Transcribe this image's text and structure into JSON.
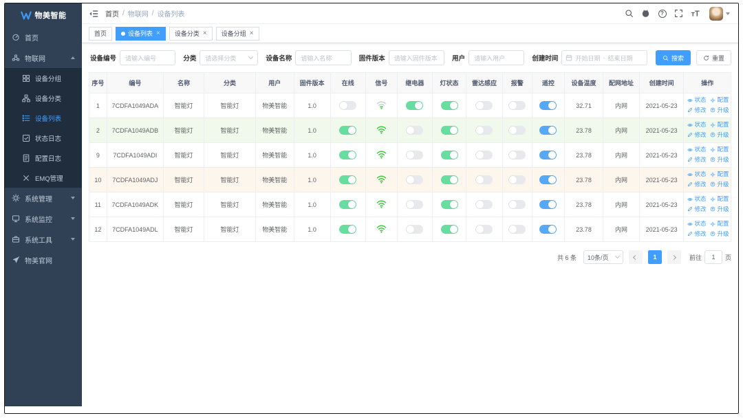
{
  "brand": {
    "name": "物美智能"
  },
  "sidebar": {
    "items": [
      {
        "label": "首页",
        "icon": "dashboard-icon",
        "type": "item"
      },
      {
        "label": "物联网",
        "icon": "iot-icon",
        "type": "group",
        "expanded": true,
        "children": [
          {
            "label": "设备分组",
            "icon": "device-group-icon",
            "active": false
          },
          {
            "label": "设备分类",
            "icon": "device-category-icon",
            "active": false
          },
          {
            "label": "设备列表",
            "icon": "device-list-icon",
            "active": true
          },
          {
            "label": "状态日志",
            "icon": "status-log-icon",
            "active": false
          },
          {
            "label": "配置日志",
            "icon": "config-log-icon",
            "active": false
          },
          {
            "label": "EMQ管理",
            "icon": "emq-icon",
            "active": false
          }
        ]
      },
      {
        "label": "系统管理",
        "icon": "gear-icon",
        "type": "group",
        "expanded": false
      },
      {
        "label": "系统监控",
        "icon": "monitor-icon",
        "type": "group",
        "expanded": false
      },
      {
        "label": "系统工具",
        "icon": "tools-icon",
        "type": "group",
        "expanded": false
      },
      {
        "label": "物美官网",
        "icon": "send-icon",
        "type": "item"
      }
    ]
  },
  "navbar": {
    "breadcrumb": [
      "首页",
      "物联网",
      "设备列表"
    ],
    "icons": [
      "search-icon",
      "github-icon",
      "help-icon",
      "fullscreen-icon",
      "font-size-icon"
    ],
    "help_glyph": "?"
  },
  "tabs": [
    {
      "label": "首页",
      "active": false,
      "closable": false
    },
    {
      "label": "设备列表",
      "active": true,
      "closable": true
    },
    {
      "label": "设备分类",
      "active": false,
      "closable": true
    },
    {
      "label": "设备分组",
      "active": false,
      "closable": true
    }
  ],
  "filters": [
    {
      "label": "设备编号",
      "type": "input",
      "placeholder": "请输入编号",
      "value": ""
    },
    {
      "label": "分类",
      "type": "select",
      "placeholder": "请选择分类",
      "value": ""
    },
    {
      "label": "设备名称",
      "type": "input",
      "placeholder": "请输入名称",
      "value": ""
    },
    {
      "label": "固件版本",
      "type": "input",
      "placeholder": "请输入固件版本",
      "value": ""
    },
    {
      "label": "用户",
      "type": "input",
      "placeholder": "请输入用户",
      "value": ""
    },
    {
      "label": "创建时间",
      "type": "daterange",
      "start_placeholder": "开始日期",
      "separator": "-",
      "end_placeholder": "结束日期"
    }
  ],
  "filter_actions": {
    "search": "搜索",
    "reset": "重置"
  },
  "table": {
    "columns": [
      {
        "key": "index",
        "label": "序号"
      },
      {
        "key": "code",
        "label": "编号"
      },
      {
        "key": "name",
        "label": "名称"
      },
      {
        "key": "category",
        "label": "分类"
      },
      {
        "key": "user",
        "label": "用户"
      },
      {
        "key": "firmware",
        "label": "固件版本"
      },
      {
        "key": "online",
        "label": "在线"
      },
      {
        "key": "signal",
        "label": "信号"
      },
      {
        "key": "relay",
        "label": "继电器"
      },
      {
        "key": "light",
        "label": "灯状态"
      },
      {
        "key": "radar",
        "label": "雷达感应"
      },
      {
        "key": "alarm",
        "label": "报警"
      },
      {
        "key": "remote",
        "label": "遥控"
      },
      {
        "key": "temperature",
        "label": "设备温度"
      },
      {
        "key": "network",
        "label": "配网地址"
      },
      {
        "key": "created",
        "label": "创建时间"
      },
      {
        "key": "ops",
        "label": "操作"
      }
    ],
    "row_actions": [
      {
        "label": "状态",
        "icon": "status-icon"
      },
      {
        "label": "配置",
        "icon": "config-icon"
      },
      {
        "label": "修改",
        "icon": "edit-icon"
      },
      {
        "label": "升级",
        "icon": "upgrade-icon"
      }
    ],
    "rows": [
      {
        "index": "1",
        "code": "7CDFA1049ADA",
        "name": "智能灯",
        "category": "智能灯",
        "user": "物美智能",
        "firmware": "1.0",
        "online": false,
        "signal": "weak",
        "relay": true,
        "light": true,
        "radar": false,
        "alarm": false,
        "remote": true,
        "temperature": "32.71",
        "network": "内网",
        "created": "2021-05-23",
        "highlight": "none"
      },
      {
        "index": "2",
        "code": "7CDFA1049ADB",
        "name": "智能灯",
        "category": "智能灯",
        "user": "物美智能",
        "firmware": "1.0",
        "online": true,
        "signal": "strong",
        "relay": false,
        "light": true,
        "radar": false,
        "alarm": false,
        "remote": true,
        "temperature": "23.78",
        "network": "内网",
        "created": "2021-05-23",
        "highlight": "success"
      },
      {
        "index": "9",
        "code": "7CDFA1049ADI",
        "name": "智能灯",
        "category": "智能灯",
        "user": "物美智能",
        "firmware": "1.0",
        "online": true,
        "signal": "strong",
        "relay": false,
        "light": true,
        "radar": false,
        "alarm": false,
        "remote": true,
        "temperature": "23.78",
        "network": "内网",
        "created": "2021-05-23",
        "highlight": "none"
      },
      {
        "index": "10",
        "code": "7CDFA1049ADJ",
        "name": "智能灯",
        "category": "智能灯",
        "user": "物美智能",
        "firmware": "1.0",
        "online": true,
        "signal": "strong",
        "relay": false,
        "light": true,
        "radar": false,
        "alarm": false,
        "remote": true,
        "temperature": "23.78",
        "network": "内网",
        "created": "2021-05-23",
        "highlight": "warning"
      },
      {
        "index": "11",
        "code": "7CDFA1049ADK",
        "name": "智能灯",
        "category": "智能灯",
        "user": "物美智能",
        "firmware": "1.0",
        "online": true,
        "signal": "strong",
        "relay": false,
        "light": true,
        "radar": false,
        "alarm": false,
        "remote": true,
        "temperature": "23.78",
        "network": "内网",
        "created": "2021-05-23",
        "highlight": "none"
      },
      {
        "index": "12",
        "code": "7CDFA1049ADL",
        "name": "智能灯",
        "category": "智能灯",
        "user": "物美智能",
        "firmware": "1.0",
        "online": true,
        "signal": "strong",
        "relay": false,
        "light": true,
        "radar": false,
        "alarm": false,
        "remote": true,
        "temperature": "23.78",
        "network": "内网",
        "created": "2021-05-23",
        "highlight": "none"
      }
    ]
  },
  "pagination": {
    "total_text": "共 6 条",
    "page_size": "10条/页",
    "current_page": "1",
    "goto_label": "前往",
    "goto_value": "1",
    "goto_suffix": "页"
  },
  "colors": {
    "accent": "#409EFF",
    "toggle_on_green": "#67dda0",
    "toggle_on_blue": "#57a9f5",
    "toggle_off": "#e7e9ec",
    "wifi_green": "#3fc73f",
    "wifi_gray": "#c9ccd4",
    "row_success_bg": "#f0f9eb",
    "row_warning_bg": "#fdf6ec",
    "sidebar_bg": "#304156",
    "submenu_bg": "#1f2d3d",
    "header_bg": "#f8f8f9"
  }
}
